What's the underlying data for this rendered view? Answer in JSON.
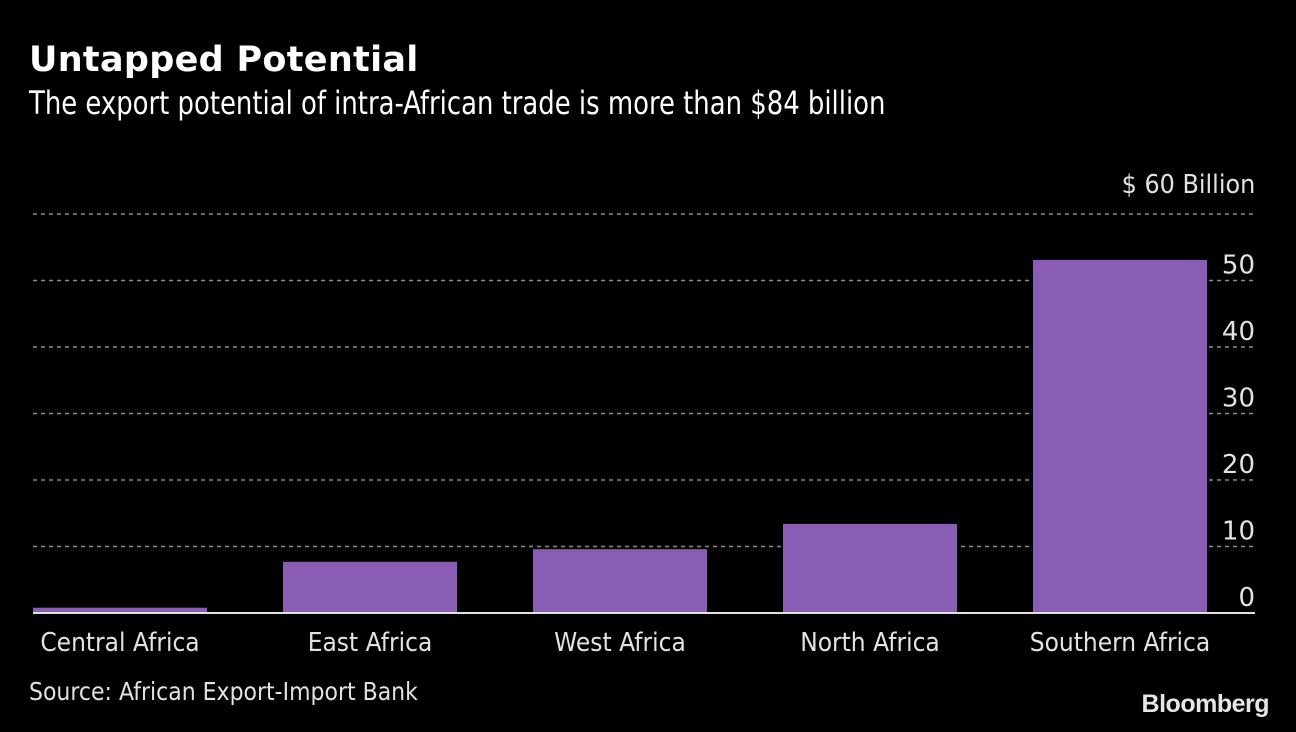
{
  "header": {
    "title": "Untapped Potential",
    "subtitle": "The export potential of intra-African trade is more than $84 billion"
  },
  "footer": {
    "source": "Source: African Export-Import Bank",
    "logo": "Bloomberg"
  },
  "colors": {
    "bar": "#8a5db4",
    "background": "#000000",
    "grid": "#8c8c8c",
    "baseline": "#e0e0e0",
    "text": "#e2e2e2"
  },
  "chart_data": {
    "type": "bar",
    "title": "Untapped Potential",
    "subtitle": "The export potential of intra-African trade is more than $84 billion",
    "unit_label": "$ 60  Billion",
    "categories": [
      "Central Africa",
      "East Africa",
      "West Africa",
      "North Africa",
      "Southern Africa"
    ],
    "values": [
      0.8,
      7.7,
      9.6,
      13.4,
      53.1
    ],
    "ylim": [
      0,
      60
    ],
    "yticks": [
      0,
      10,
      20,
      30,
      40,
      50
    ],
    "ytick_labels": [
      "0",
      "10",
      "20",
      "30",
      "40",
      "50"
    ],
    "xlabel": "",
    "ylabel": "",
    "grid": true,
    "source": "Source: African Export-Import Bank"
  }
}
